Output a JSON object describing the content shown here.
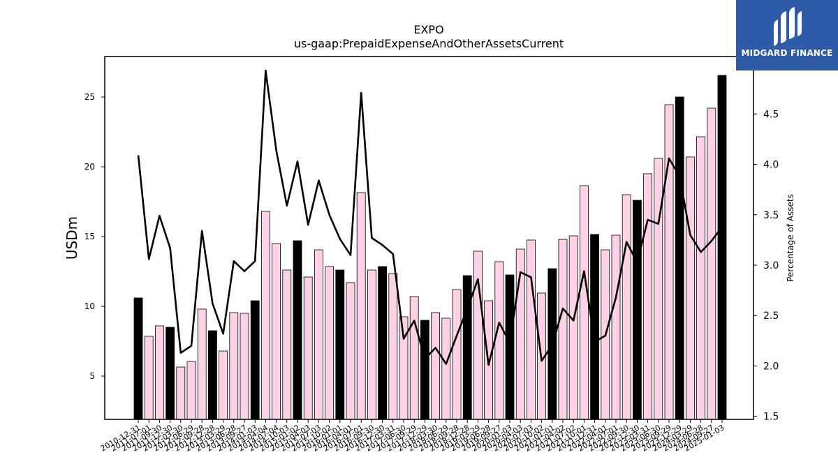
{
  "chart_data": {
    "type": "bar",
    "title": "EXPO",
    "subtitle": "us-gaap:PrepaidExpenseAndOtherAssetsCurrent",
    "ylabel": "USDm",
    "y2label": "Percentage of Assets",
    "ylim": [
      1.9,
      27.9
    ],
    "y2lim": [
      1.47,
      5.07
    ],
    "yticks": [
      5,
      10,
      15,
      20,
      25
    ],
    "y2ticks": [
      1.5,
      2.0,
      2.5,
      3.0,
      3.5,
      4.0,
      4.5
    ],
    "categories": [
      "2010-12-31",
      "2011-07-01",
      "2011-09-30",
      "2011-12-30",
      "2012-03-30",
      "2012-06-29",
      "2012-09-28",
      "2012-12-28",
      "2013-03-29",
      "2013-06-28",
      "2013-09-27",
      "2014-01-03",
      "2014-04-04",
      "2014-07-04",
      "2014-10-03",
      "2015-01-02",
      "2015-04-03",
      "2015-07-03",
      "2015-10-02",
      "2016-01-01",
      "2016-04-01",
      "2016-07-01",
      "2016-09-30",
      "2016-12-30",
      "2017-03-31",
      "2017-06-30",
      "2017-09-29",
      "2017-12-29",
      "2018-03-30",
      "2018-06-29",
      "2018-09-28",
      "2018-12-28",
      "2019-03-29",
      "2019-06-28",
      "2019-09-27",
      "2020-01-03",
      "2020-04-03",
      "2020-07-03",
      "2020-10-02",
      "2021-01-01",
      "2021-04-02",
      "2021-07-02",
      "2021-10-01",
      "2021-12-31",
      "2022-04-01",
      "2022-07-01",
      "2022-09-30",
      "2022-12-30",
      "2023-03-31",
      "2023-06-30",
      "2023-09-29",
      "2023-12-29",
      "2024-03-29",
      "2024-06-28",
      "2024-09-27",
      "2025-01-03"
    ],
    "series": [
      {
        "name": "",
        "type": "bar",
        "values": [
          10.6,
          7.85,
          8.6,
          8.5,
          5.65,
          6.05,
          9.8,
          8.25,
          6.8,
          9.55,
          9.5,
          10.4,
          16.8,
          14.5,
          12.6,
          14.7,
          12.1,
          14.05,
          12.85,
          12.6,
          11.7,
          18.15,
          12.6,
          12.85,
          12.35,
          9.25,
          10.7,
          9.0,
          9.55,
          9.15,
          11.2,
          12.2,
          13.95,
          10.4,
          13.2,
          12.25,
          14.1,
          14.75,
          10.95,
          12.7,
          14.8,
          15.05,
          18.65,
          15.15,
          14.05,
          15.1,
          18.0,
          17.6,
          19.5,
          20.6,
          24.45,
          25.0,
          20.7,
          22.15,
          24.2,
          26.55
        ],
        "highlight_color": "#000000",
        "normal_color": "#ffd1e6",
        "highlighted": [
          true,
          false,
          false,
          true,
          false,
          false,
          false,
          true,
          false,
          false,
          false,
          true,
          false,
          false,
          false,
          true,
          false,
          false,
          false,
          true,
          false,
          false,
          false,
          true,
          false,
          false,
          false,
          true,
          false,
          false,
          false,
          true,
          false,
          false,
          false,
          true,
          false,
          false,
          false,
          true,
          false,
          false,
          false,
          true,
          false,
          false,
          false,
          true,
          false,
          false,
          false,
          true,
          false,
          false,
          false,
          true
        ]
      },
      {
        "name": "",
        "type": "line",
        "axis": "right",
        "color": "#000000",
        "values": [
          4.09,
          3.06,
          3.49,
          3.17,
          2.13,
          2.2,
          3.34,
          2.62,
          2.32,
          3.04,
          2.94,
          3.04,
          4.93,
          4.14,
          3.59,
          4.03,
          3.4,
          3.84,
          3.5,
          3.26,
          3.1,
          4.71,
          3.27,
          3.2,
          3.11,
          2.27,
          2.45,
          2.07,
          2.18,
          2.02,
          2.3,
          2.57,
          2.86,
          2.01,
          2.43,
          2.23,
          2.93,
          2.88,
          2.05,
          2.21,
          2.57,
          2.45,
          2.94,
          2.24,
          2.3,
          2.68,
          3.23,
          3.03,
          3.45,
          3.41,
          4.06,
          3.88,
          3.3,
          3.13,
          3.24,
          3.38
        ]
      }
    ],
    "legend": "none",
    "grid": false
  },
  "logo": {
    "text": "MIDGARD FINANCE",
    "icon": "midgard-logo-icon",
    "background": "#2f5aa8"
  }
}
